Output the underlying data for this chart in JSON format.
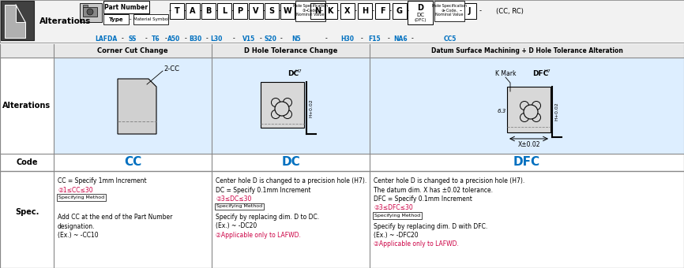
{
  "fig_width": 8.66,
  "fig_height": 3.4,
  "bg_color": "#ffffff",
  "light_blue_bg": "#ddeeff",
  "blue_text": "#0070c0",
  "black": "#000000",
  "pink_red": "#cc0044",
  "border_color": "#888888",
  "white": "#ffffff",
  "table": {
    "col1_header": "Corner Cut Change",
    "col2_header": "D Hole Tolerance Change",
    "col3_header": "Datum Surface Machining + D Hole Tolerance Alteration",
    "row1_label": "Alterations",
    "row2_label": "Code",
    "row3_label": "Spec.",
    "code1": "CC",
    "code2": "DC",
    "code3": "DFC",
    "spec1_lines": [
      "CC = Specify 1mm Increment",
      "②1≤CC≤30",
      "Specifying Method",
      "",
      "Add CC at the end of the Part Number",
      "designation.",
      "(Ex.) ~ -CC10"
    ],
    "spec2_lines": [
      "Center hole D is changed to a precision hole (H7).",
      "DC = Specify 0.1mm Increment",
      "②3≤DC≤30",
      "Specifying Method",
      "Specify by replacing dim. D to DC.",
      "(Ex.) ~ -DC20",
      "②Applicable only to LAFWD."
    ],
    "spec3_lines": [
      "Center hole D is changed to a precision hole (H7).",
      "The datum dim. X has ±0.02 tolerance.",
      "DFC = Specify 0.1mm Increment",
      "②3≤DFC≤30",
      "Specifying Method",
      "Specify by replacing dim. D with DFC.",
      "(Ex.) ~ -DFC20",
      "②Applicable only to LAFWD."
    ]
  }
}
